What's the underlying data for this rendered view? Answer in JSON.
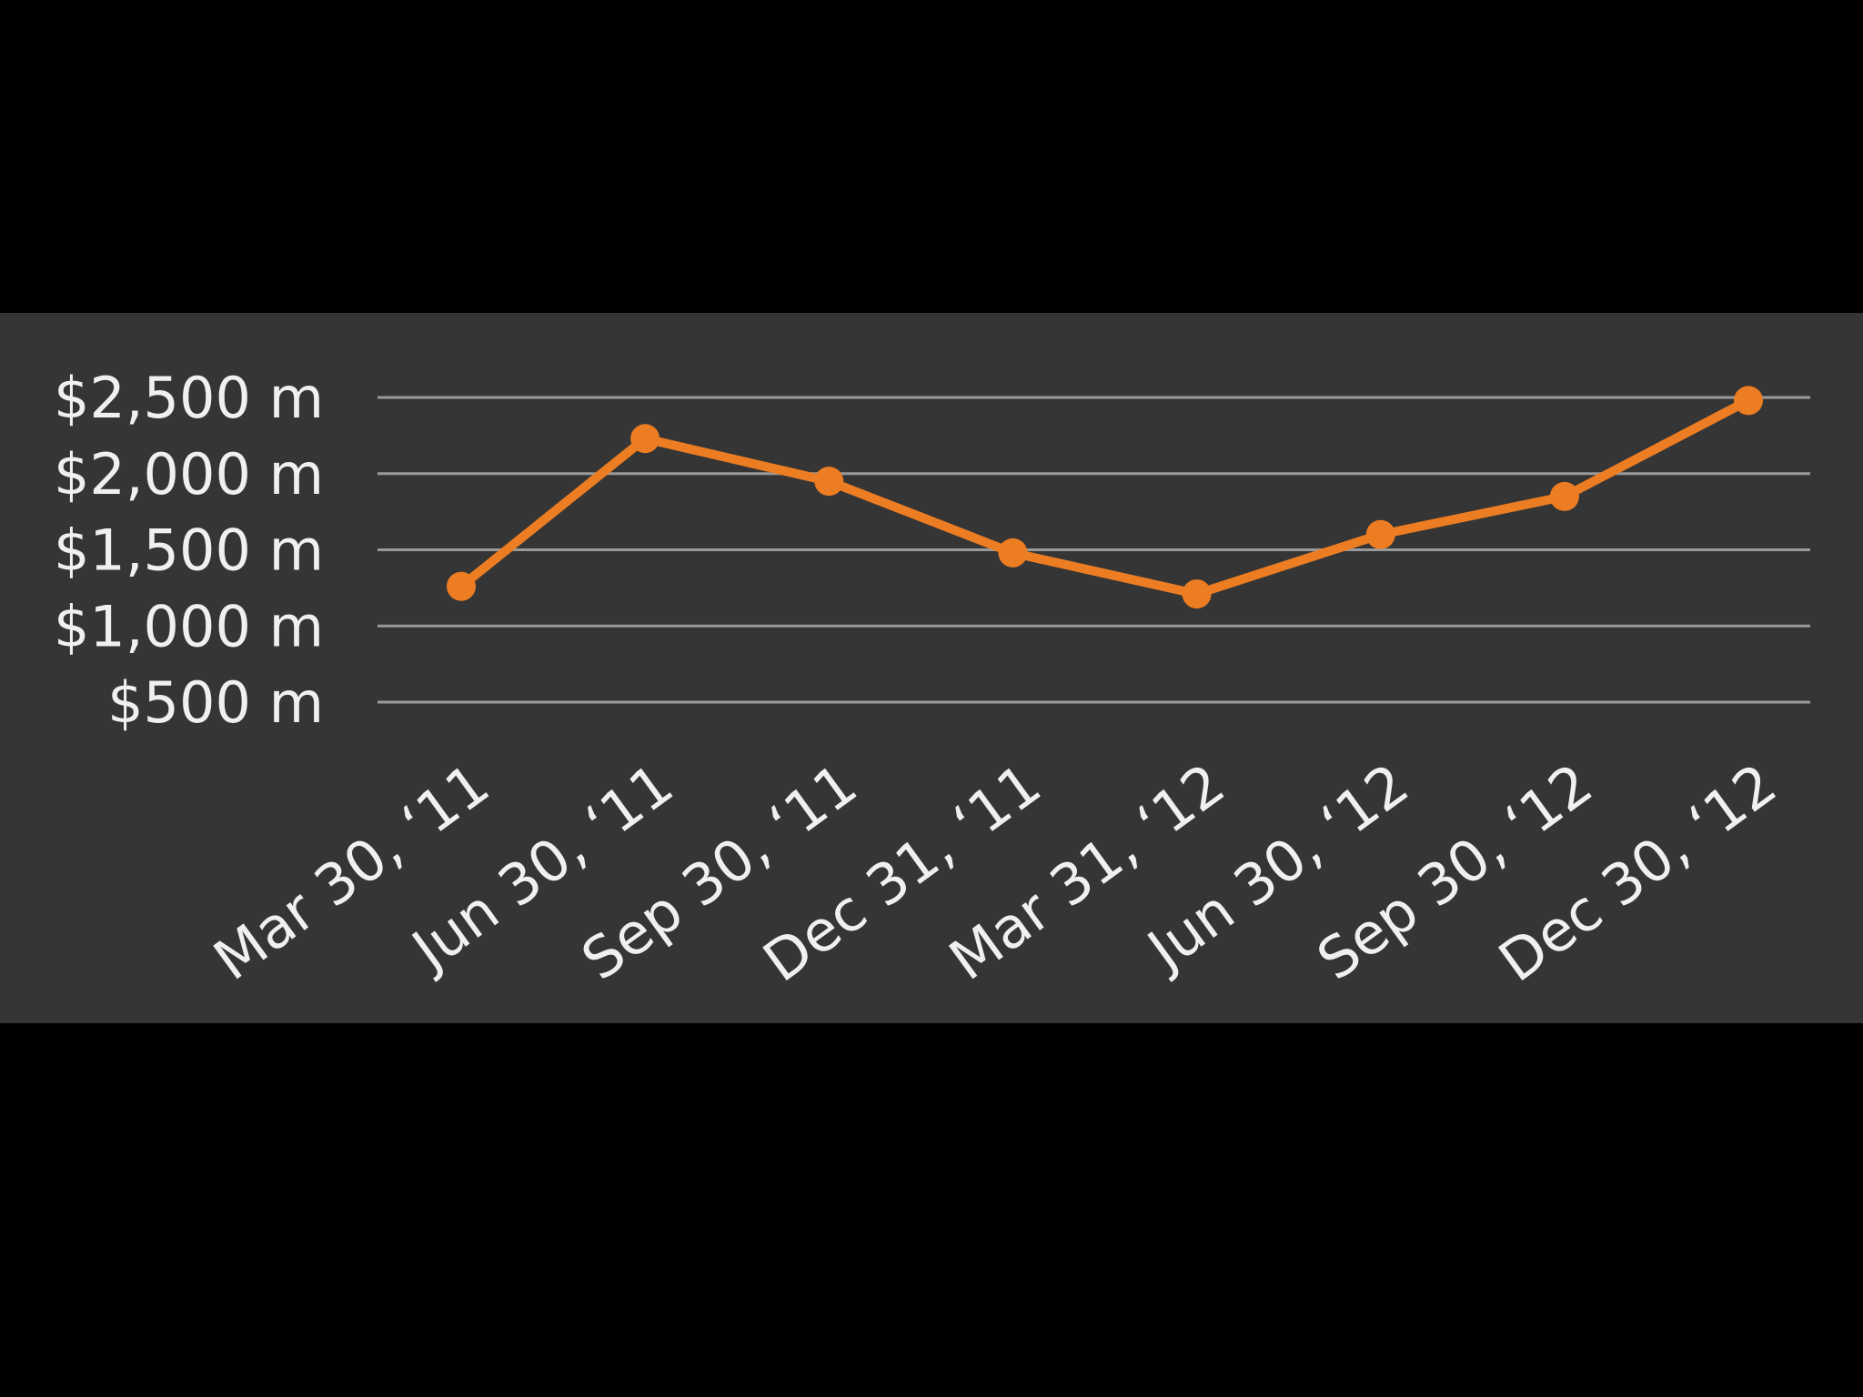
{
  "chart_data": {
    "type": "line",
    "title": "",
    "xlabel": "",
    "ylabel": "",
    "categories": [
      "Mar 30, ‘11",
      "Jun 30, ‘11",
      "Sep 30, ‘11",
      "Dec 31, ‘11",
      "Mar 31, ‘12",
      "Jun 30, ‘12",
      "Sep 30, ‘12",
      "Dec 30, ‘12"
    ],
    "series": [
      {
        "values": [
          1260,
          2230,
          1950,
          1480,
          1210,
          1600,
          1850,
          2480
        ],
        "color": "#ed7d22"
      }
    ],
    "yticks": [
      500,
      1000,
      1500,
      2000,
      2500
    ],
    "ytick_labels": [
      "$500 m",
      "$1,000 m",
      "$1,500 m",
      "$2,000 m",
      "$2,500 m"
    ],
    "ylim": [
      500,
      2500
    ],
    "grid": true,
    "legend": "none",
    "colors": {
      "panel_background": "#353535",
      "page_background": "#000000",
      "gridline": "#9a9a9a",
      "text": "#f0f0f0"
    }
  }
}
